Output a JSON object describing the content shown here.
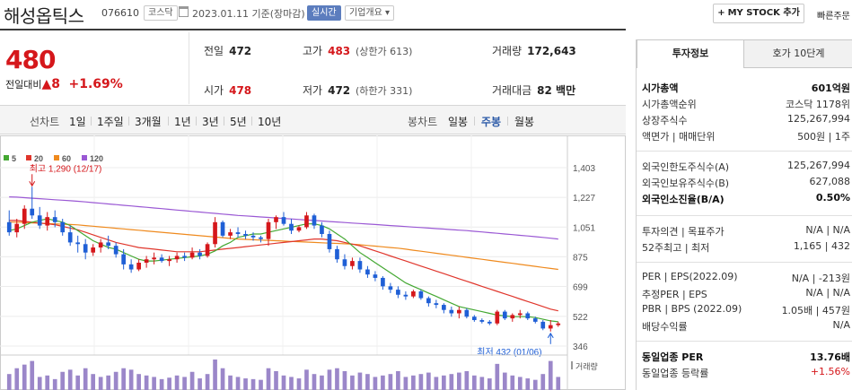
{
  "header": {
    "name": "해성옵틱스",
    "code": "076610",
    "market": "코스닥",
    "date": "2023.01.11  기준(장마감)",
    "live_badge": "실시간",
    "overview_btn": "기업개요",
    "mystock_btn": "MY STOCK 추가",
    "quick_order": "빠른주문"
  },
  "summary": {
    "price": "480",
    "change_label": "전일대비",
    "change_arrow": "▲",
    "change_val": "8",
    "change_pct": "+1.69%",
    "prev_label": "전일",
    "prev": "472",
    "high_label": "고가",
    "high": "483",
    "upper_limit": "(상한가 613)",
    "volume_label": "거래량",
    "volume": "172,643",
    "open_label": "시가",
    "open": "478",
    "low_label": "저가",
    "low": "472",
    "lower_limit": "(하한가 331)",
    "amount_label": "거래대금",
    "amount": "82 백만"
  },
  "period_tabs": {
    "line_label": "선차트",
    "items": [
      "1일",
      "1주일",
      "3개월",
      "1년",
      "3년",
      "5년",
      "10년"
    ],
    "candle_label": "봉차트",
    "candle_items": [
      "일봉",
      "주봉",
      "월봉"
    ],
    "candle_selected": "주봉"
  },
  "colors": {
    "up": "#d5171b",
    "down": "#1f5fd6",
    "ma5": "#44a832",
    "ma20": "#e0362c",
    "ma60": "#ef8a1e",
    "ma120": "#9a58d4",
    "volume": "#9b87c9"
  },
  "chart_data": {
    "type": "candlestick",
    "legend": [
      "5",
      "20",
      "60",
      "120"
    ],
    "y_ticks": [
      "1,403",
      "1,227",
      "1,051",
      "875",
      "699",
      "522",
      "346"
    ],
    "ylim": [
      346,
      1403
    ],
    "high_annotation": "최고 1,290 (12/17)",
    "low_annotation": "최저 432 (01/06)",
    "volume_label": "거래량",
    "candles": [
      [
        1080,
        1150,
        1000,
        1020
      ],
      [
        1020,
        1100,
        990,
        1070
      ],
      [
        1070,
        1180,
        1040,
        1160
      ],
      [
        1160,
        1290,
        1100,
        1120
      ],
      [
        1120,
        1170,
        1040,
        1060
      ],
      [
        1060,
        1140,
        1030,
        1110
      ],
      [
        1110,
        1150,
        1050,
        1080
      ],
      [
        1080,
        1100,
        1000,
        1020
      ],
      [
        1020,
        1060,
        940,
        960
      ],
      [
        960,
        1000,
        900,
        950
      ],
      [
        950,
        980,
        860,
        900
      ],
      [
        900,
        950,
        880,
        930
      ],
      [
        930,
        980,
        900,
        960
      ],
      [
        960,
        1000,
        920,
        940
      ],
      [
        940,
        960,
        870,
        890
      ],
      [
        890,
        920,
        800,
        830
      ],
      [
        830,
        860,
        780,
        800
      ],
      [
        800,
        860,
        790,
        840
      ],
      [
        840,
        880,
        810,
        860
      ],
      [
        860,
        900,
        830,
        870
      ],
      [
        870,
        890,
        840,
        850
      ],
      [
        850,
        880,
        820,
        860
      ],
      [
        860,
        900,
        840,
        880
      ],
      [
        880,
        900,
        850,
        870
      ],
      [
        870,
        930,
        860,
        900
      ],
      [
        900,
        920,
        860,
        880
      ],
      [
        880,
        960,
        870,
        950
      ],
      [
        950,
        1110,
        930,
        1080
      ],
      [
        1080,
        1090,
        990,
        1000
      ],
      [
        1000,
        1040,
        980,
        1020
      ],
      [
        1020,
        1050,
        990,
        1010
      ],
      [
        1010,
        1030,
        980,
        1000
      ],
      [
        1000,
        1020,
        970,
        990
      ],
      [
        990,
        1000,
        960,
        980
      ],
      [
        980,
        1100,
        940,
        1080
      ],
      [
        1080,
        1120,
        1040,
        1110
      ],
      [
        1110,
        1140,
        1060,
        1070
      ],
      [
        1070,
        1100,
        1010,
        1030
      ],
      [
        1030,
        1060,
        1020,
        1050
      ],
      [
        1050,
        1140,
        1040,
        1120
      ],
      [
        1120,
        1130,
        1040,
        1060
      ],
      [
        1060,
        1080,
        990,
        1010
      ],
      [
        1010,
        1030,
        900,
        920
      ],
      [
        920,
        940,
        840,
        860
      ],
      [
        860,
        890,
        800,
        820
      ],
      [
        820,
        870,
        800,
        850
      ],
      [
        850,
        870,
        780,
        800
      ],
      [
        800,
        820,
        750,
        770
      ],
      [
        770,
        790,
        730,
        750
      ],
      [
        750,
        760,
        680,
        700
      ],
      [
        700,
        720,
        660,
        680
      ],
      [
        680,
        700,
        630,
        650
      ],
      [
        650,
        670,
        620,
        640
      ],
      [
        640,
        680,
        630,
        670
      ],
      [
        670,
        680,
        620,
        630
      ],
      [
        630,
        640,
        580,
        600
      ],
      [
        600,
        620,
        570,
        590
      ],
      [
        590,
        600,
        540,
        560
      ],
      [
        560,
        580,
        520,
        540
      ],
      [
        540,
        580,
        510,
        560
      ],
      [
        560,
        570,
        510,
        520
      ],
      [
        520,
        530,
        490,
        500
      ],
      [
        500,
        510,
        480,
        490
      ],
      [
        490,
        500,
        470,
        480
      ],
      [
        480,
        560,
        470,
        550
      ],
      [
        550,
        560,
        500,
        510
      ],
      [
        510,
        540,
        490,
        530
      ],
      [
        530,
        560,
        510,
        540
      ],
      [
        540,
        550,
        500,
        510
      ],
      [
        510,
        520,
        480,
        490
      ],
      [
        490,
        500,
        440,
        450
      ],
      [
        450,
        500,
        432,
        470
      ],
      [
        470,
        490,
        460,
        480
      ]
    ],
    "ma5": [
      1030,
      1040,
      1060,
      1080,
      1090,
      1100,
      1090,
      1080,
      1060,
      1030,
      1000,
      970,
      950,
      930,
      920,
      900,
      880,
      860,
      850,
      850,
      855,
      860,
      865,
      870,
      875,
      880,
      890,
      910,
      940,
      960,
      990,
      1000,
      1010,
      1010,
      1020,
      1030,
      1040,
      1050,
      1060,
      1070,
      1070,
      1060,
      1040,
      1010,
      980,
      940,
      900,
      870,
      840,
      810,
      780,
      750,
      720,
      700,
      680,
      660,
      640,
      620,
      600,
      580,
      570,
      560,
      550,
      540,
      530,
      525,
      520,
      520,
      520,
      515,
      505,
      495,
      490
    ],
    "ma20": [
      1090,
      1090,
      1085,
      1080,
      1075,
      1070,
      1065,
      1055,
      1045,
      1035,
      1020,
      1005,
      990,
      975,
      960,
      950,
      940,
      930,
      925,
      920,
      915,
      910,
      905,
      905,
      905,
      905,
      910,
      915,
      920,
      925,
      930,
      935,
      940,
      945,
      950,
      955,
      960,
      965,
      970,
      975,
      980,
      980,
      975,
      970,
      960,
      950,
      940,
      925,
      910,
      895,
      880,
      865,
      850,
      835,
      820,
      805,
      790,
      775,
      760,
      745,
      730,
      715,
      700,
      685,
      670,
      655,
      640,
      625,
      610,
      595,
      580,
      565,
      555
    ],
    "ma60": [
      1080,
      1080,
      1078,
      1076,
      1074,
      1072,
      1070,
      1068,
      1066,
      1064,
      1060,
      1056,
      1052,
      1048,
      1044,
      1040,
      1036,
      1032,
      1028,
      1024,
      1020,
      1016,
      1012,
      1008,
      1004,
      1000,
      996,
      992,
      988,
      984,
      980,
      978,
      976,
      974,
      972,
      970,
      968,
      966,
      964,
      962,
      960,
      958,
      956,
      954,
      952,
      950,
      946,
      942,
      938,
      934,
      930,
      926,
      920,
      914,
      908,
      902,
      896,
      890,
      884,
      878,
      872,
      866,
      860,
      854,
      848,
      842,
      836,
      830,
      824,
      818,
      812,
      806,
      800
    ],
    "ma120": [
      1230,
      1228,
      1225,
      1222,
      1219,
      1216,
      1213,
      1210,
      1207,
      1204,
      1200,
      1196,
      1192,
      1188,
      1184,
      1180,
      1176,
      1172,
      1168,
      1164,
      1160,
      1156,
      1152,
      1148,
      1144,
      1140,
      1136,
      1132,
      1128,
      1124,
      1120,
      1117,
      1114,
      1111,
      1108,
      1105,
      1102,
      1099,
      1096,
      1093,
      1090,
      1087,
      1084,
      1081,
      1078,
      1075,
      1072,
      1069,
      1066,
      1063,
      1060,
      1057,
      1054,
      1051,
      1048,
      1045,
      1042,
      1039,
      1036,
      1033,
      1030,
      1026,
      1022,
      1018,
      1014,
      1010,
      1006,
      1002,
      998,
      994,
      990,
      985,
      980
    ],
    "volumes": [
      22,
      30,
      35,
      40,
      18,
      20,
      15,
      25,
      28,
      20,
      30,
      22,
      18,
      20,
      25,
      30,
      28,
      22,
      20,
      18,
      15,
      17,
      20,
      18,
      25,
      16,
      22,
      42,
      30,
      20,
      18,
      16,
      15,
      14,
      30,
      26,
      20,
      18,
      16,
      28,
      22,
      20,
      28,
      30,
      26,
      20,
      24,
      22,
      18,
      20,
      22,
      26,
      18,
      20,
      22,
      24,
      18,
      20,
      22,
      24,
      26,
      20,
      18,
      16,
      36,
      24,
      20,
      18,
      16,
      14,
      22,
      40,
      18
    ]
  },
  "invest_panel": {
    "tab_info": "투자정보",
    "tab_quote": "호가 10단계",
    "rows": [
      {
        "k": "시가총액",
        "v": "601억원",
        "bold": true
      },
      {
        "k": "시가총액순위",
        "v": "코스닥 1178위"
      },
      {
        "k": "상장주식수",
        "v": "125,267,994"
      },
      {
        "k": "액면가 | 매매단위",
        "v": "500원 | 1주"
      },
      {
        "k": "외국인한도주식수(A)",
        "v": "125,267,994"
      },
      {
        "k": "외국인보유주식수(B)",
        "v": "627,088"
      },
      {
        "k": "외국인소진율(B/A)",
        "v": "0.50%",
        "bold": true
      },
      {
        "k": "투자의견 | 목표주가",
        "v": "N/A | N/A"
      },
      {
        "k": "52주최고 | 최저",
        "v": "1,165 | 432"
      },
      {
        "k": "PER | EPS(2022.09)",
        "v": "N/A | -213원"
      },
      {
        "k": "추정PER | EPS",
        "v": "N/A | N/A"
      },
      {
        "k": "PBR | BPS (2022.09)",
        "v": "1.05배 | 457원"
      },
      {
        "k": "배당수익률",
        "v": "N/A"
      },
      {
        "k": "동일업종 PER",
        "v": "13.76배",
        "bold": true
      },
      {
        "k": "동일업종 등락률",
        "v": "+1.56%",
        "red": true
      }
    ]
  }
}
